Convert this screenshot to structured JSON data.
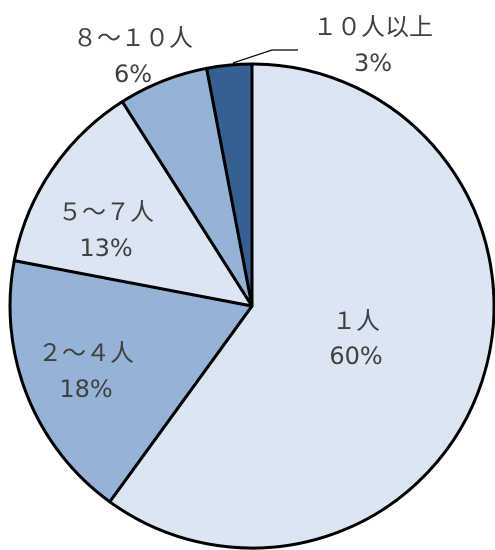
{
  "chart_data": {
    "type": "pie",
    "title": "",
    "start_angle_deg": 0,
    "direction": "clockwise",
    "slices": [
      {
        "label": "１人",
        "value": 60,
        "value_label": "60%",
        "color": "#dce6f2"
      },
      {
        "label": "２～４人",
        "value": 18,
        "value_label": "18%",
        "color": "#95b3d7"
      },
      {
        "label": "５～７人",
        "value": 13,
        "value_label": "13%",
        "color": "#dce6f2"
      },
      {
        "label": "８～１０人",
        "value": 6,
        "value_label": "6%",
        "color": "#95b3d7"
      },
      {
        "label": "１０人以上",
        "value": 3,
        "value_label": "3%",
        "color": "#366092"
      }
    ]
  }
}
